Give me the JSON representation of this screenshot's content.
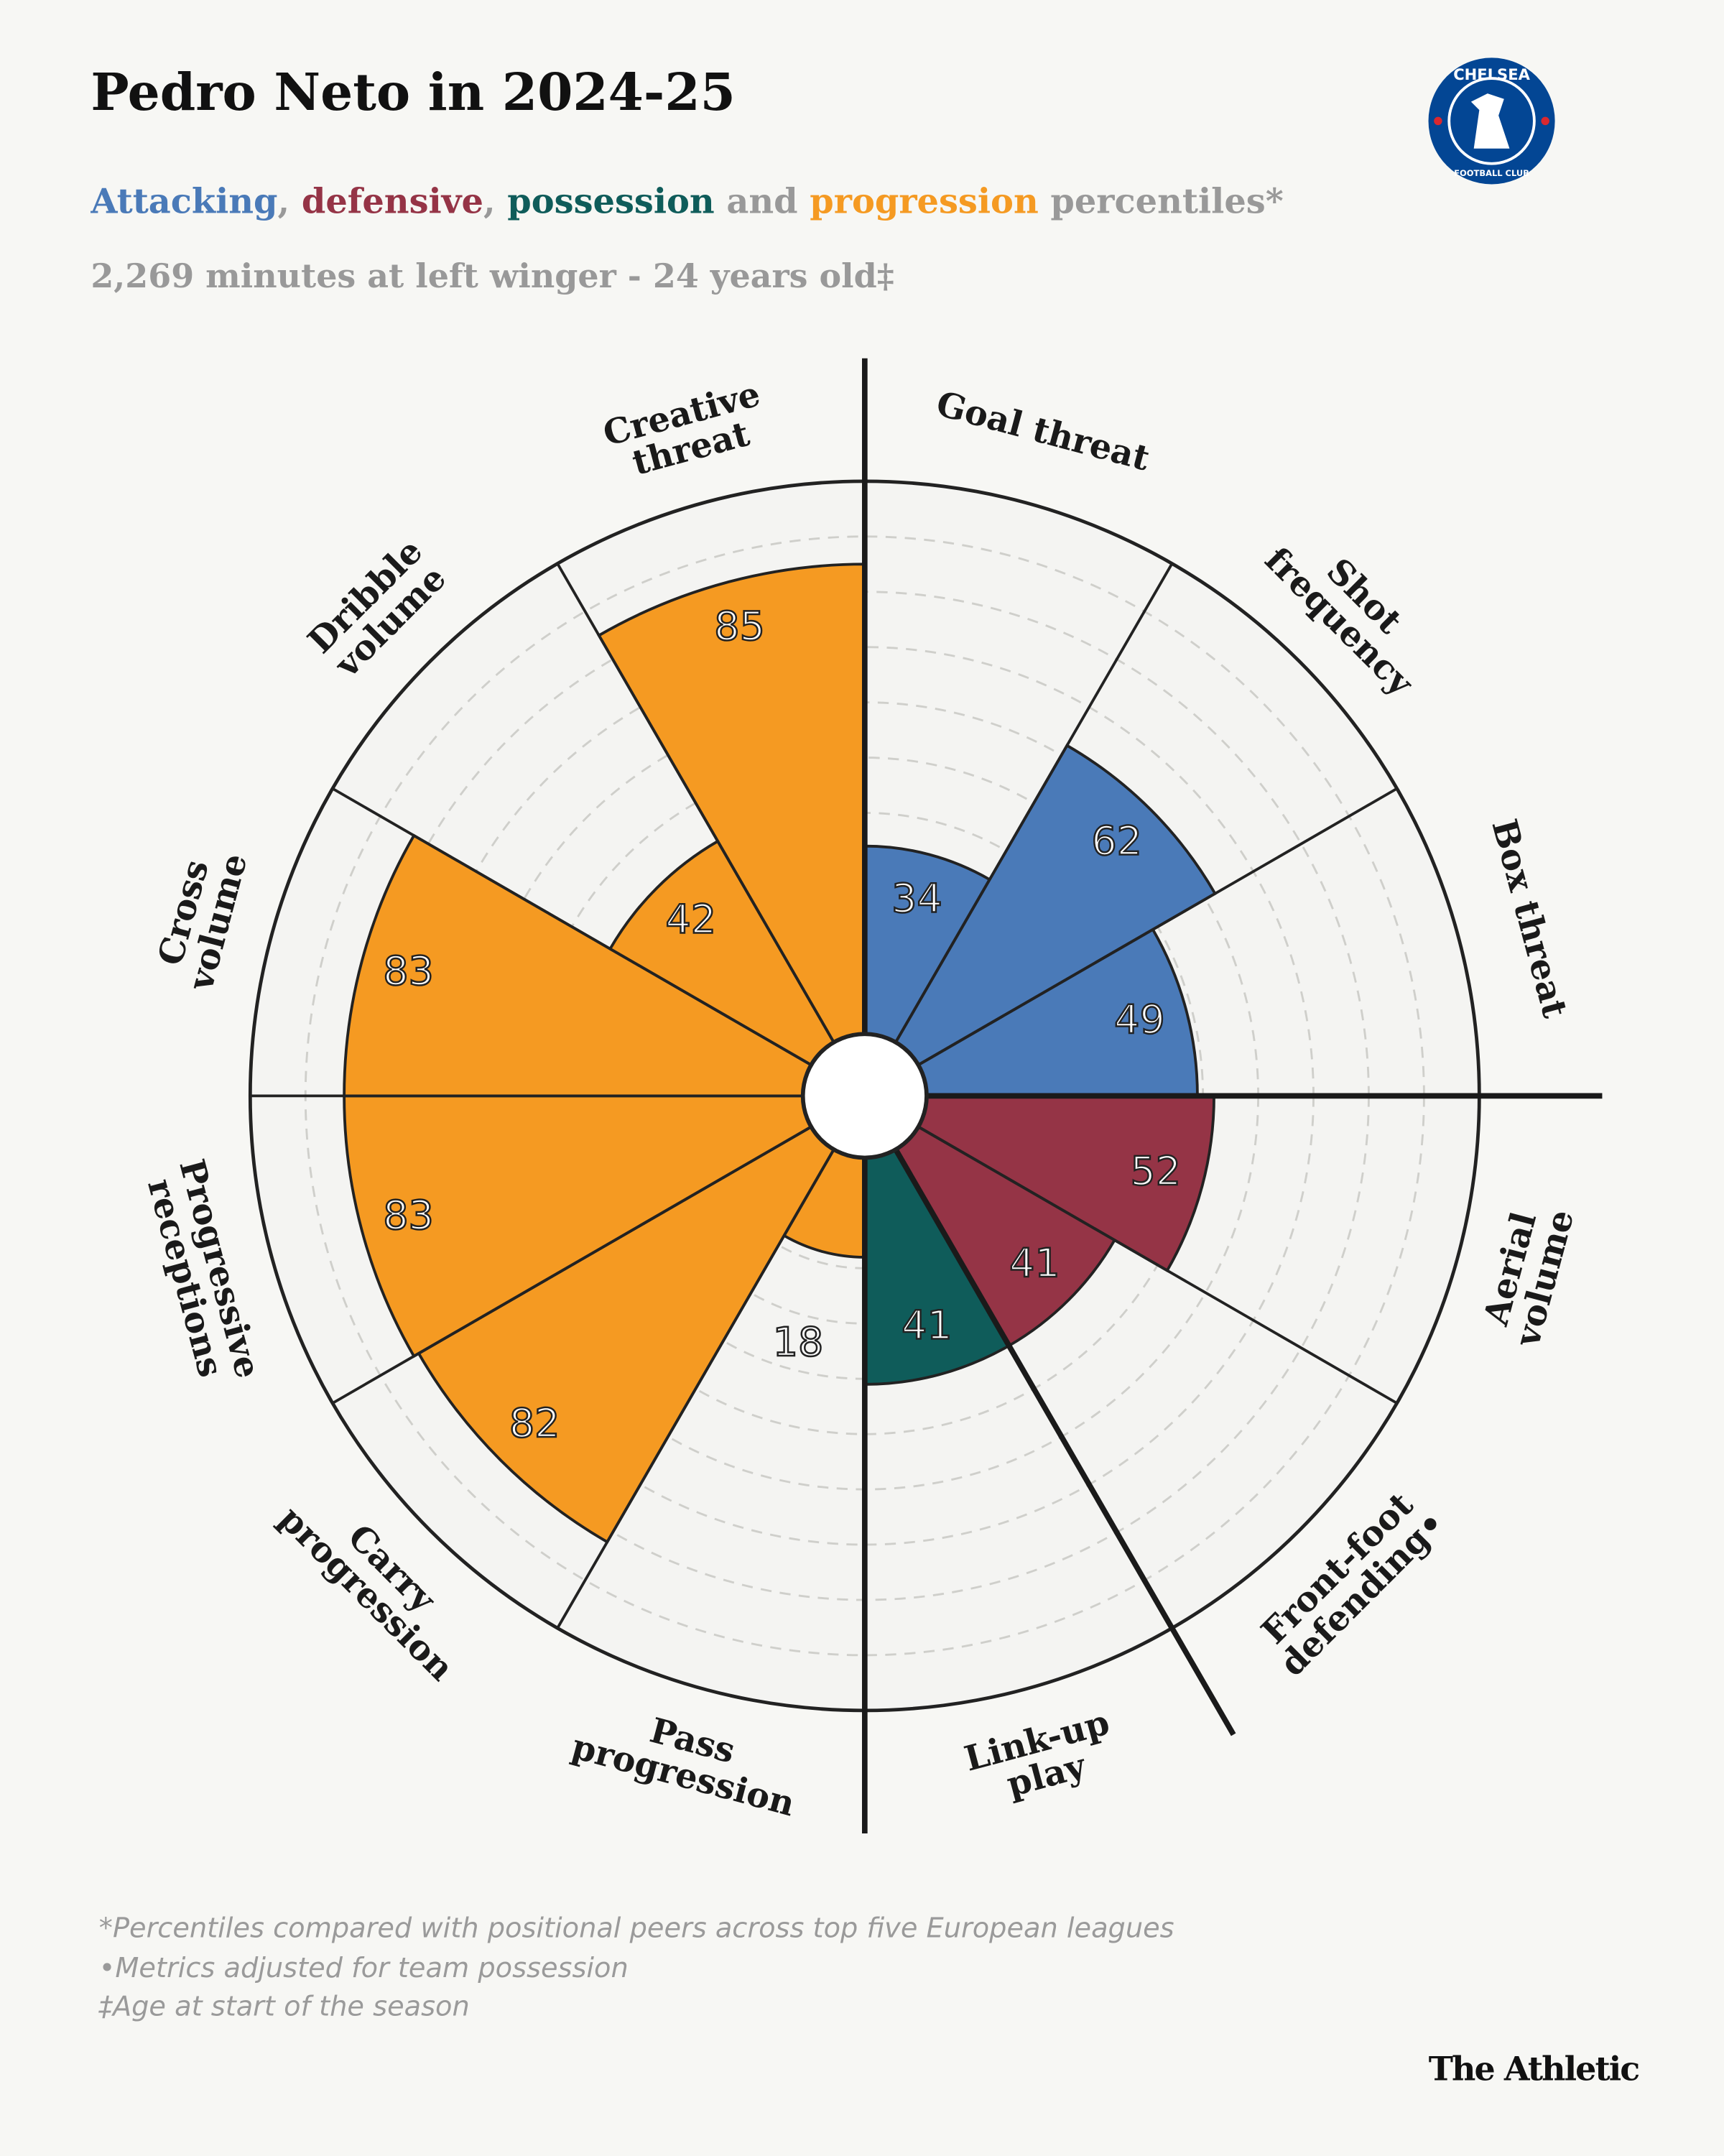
{
  "header": {
    "title": "Pedro Neto in 2024-25",
    "info": "2,269 minutes at left winger - 24 years old‡"
  },
  "badge": {
    "top": "CHELSEA",
    "bottom": "FOOTBALL CLUB"
  },
  "chart_data": {
    "type": "polar_bar",
    "subtitle_joins": [
      ", ",
      ", ",
      " and ",
      " percentiles*"
    ],
    "categories": [
      "Goal threat",
      "Shot\nfrequency",
      "Box threat",
      "Aerial\nvolume",
      "Front-foot\ndefending•",
      "Link-up\nplay",
      "Pass\nprogression",
      "Carry\nprogression",
      "Progressive\nreceptions",
      "Cross\nvolume",
      "Dribble\nvolume",
      "Creative\nthreat"
    ],
    "series": [
      {
        "name": "Attacking",
        "color": "#4a7ab8",
        "values": [
          34,
          62,
          49,
          null,
          null,
          null,
          null,
          null,
          null,
          null,
          null,
          null
        ]
      },
      {
        "name": "defensive",
        "color": "#953446",
        "values": [
          null,
          null,
          null,
          52,
          41,
          null,
          null,
          null,
          null,
          null,
          null,
          null
        ]
      },
      {
        "name": "possession",
        "color": "#0f5c5a",
        "values": [
          null,
          null,
          null,
          null,
          null,
          41,
          null,
          null,
          null,
          null,
          null,
          null
        ]
      },
      {
        "name": "progression",
        "color": "#f59a22",
        "values": [
          null,
          null,
          null,
          null,
          null,
          null,
          18,
          82,
          83,
          83,
          42,
          85
        ]
      }
    ],
    "rlim": [
      0,
      100
    ],
    "rticks": [
      10,
      20,
      30,
      40,
      50,
      60,
      70,
      80,
      90
    ],
    "grid": true
  },
  "notes": [
    "*Percentiles compared with positional peers across top five European leagues",
    "•Metrics adjusted for team possession",
    "‡Age at start of the season"
  ],
  "footer": {
    "brand": "The Athletic"
  }
}
